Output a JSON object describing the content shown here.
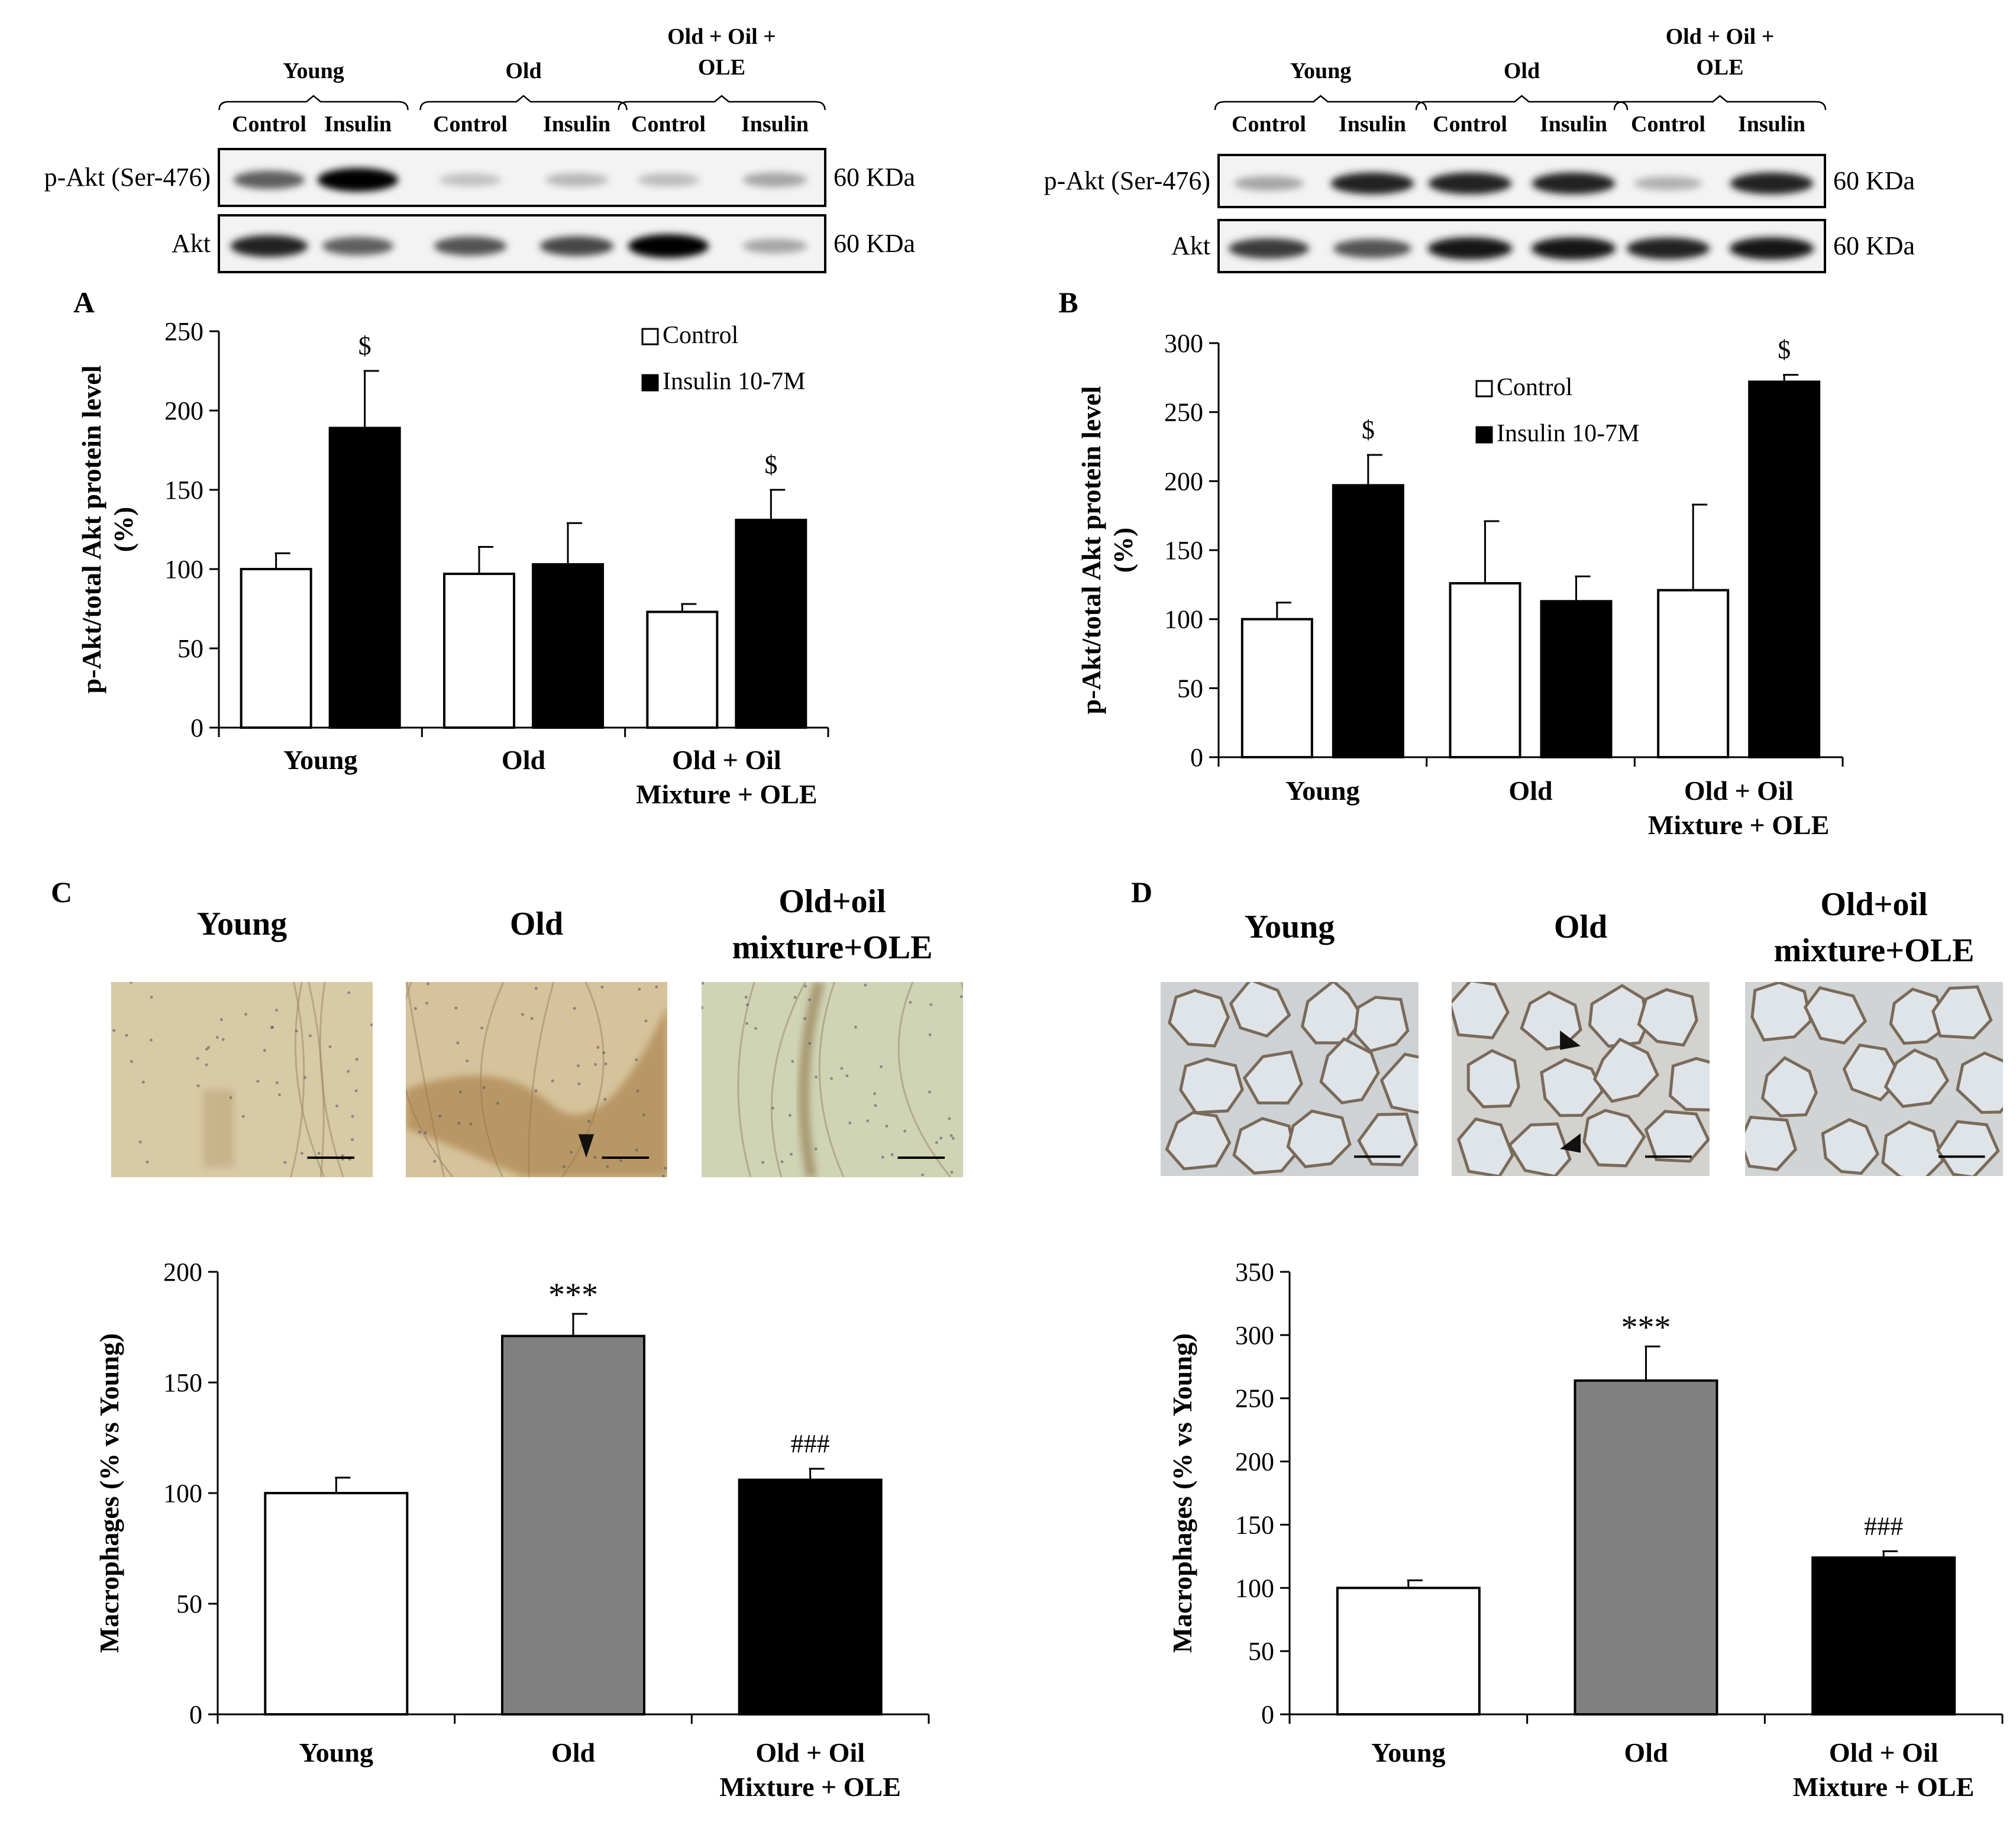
{
  "panels": {
    "A": {
      "letter": "A",
      "blot": {
        "groups": [
          {
            "name": "Young",
            "cond": [
              "Control",
              "Insulin"
            ]
          },
          {
            "name": "Old",
            "cond": [
              "Control",
              "Insulin"
            ]
          },
          {
            "name": "Old + Oil +\nOLE",
            "cond": [
              "Control",
              "Insulin"
            ]
          }
        ],
        "rows": [
          {
            "label": "p-Akt (Ser-476)",
            "kda": "60 KDa",
            "bands": [
              0.6,
              1.0,
              0.18,
              0.22,
              0.2,
              0.3
            ]
          },
          {
            "label": "Akt",
            "kda": "60 KDa",
            "bands": [
              0.85,
              0.6,
              0.65,
              0.7,
              1.0,
              0.3
            ]
          }
        ]
      }
    },
    "B": {
      "letter": "B",
      "blot": {
        "groups": [
          {
            "name": "Young",
            "cond": [
              "Control",
              "Insulin"
            ]
          },
          {
            "name": "Old",
            "cond": [
              "Control",
              "Insulin"
            ]
          },
          {
            "name": "Old + Oil +\nOLE",
            "cond": [
              "Control",
              "Insulin"
            ]
          }
        ],
        "rows": [
          {
            "label": "p-Akt (Ser-476)",
            "kda": "60 KDa",
            "bands": [
              0.3,
              0.85,
              0.85,
              0.85,
              0.25,
              0.85
            ]
          },
          {
            "label": "Akt",
            "kda": "60 KDa",
            "bands": [
              0.75,
              0.65,
              0.9,
              0.9,
              0.85,
              0.9
            ]
          }
        ]
      }
    },
    "C": {
      "letter": "C",
      "images": [
        {
          "title": "Young",
          "tone": "#d9caa6",
          "style": "muscle-young"
        },
        {
          "title": "Old",
          "tone": "#d6c39b",
          "style": "muscle-old"
        },
        {
          "title": "Old+oil\nmixture+OLE",
          "tone": "#cfd4b4",
          "style": "muscle-ole"
        }
      ]
    },
    "D": {
      "letter": "D",
      "images": [
        {
          "title": "Young",
          "tone": "#cfd2d4",
          "style": "adipo"
        },
        {
          "title": "Old",
          "tone": "#d2d2cf",
          "style": "adipo-old"
        },
        {
          "title": "Old+oil\nmixture+OLE",
          "tone": "#d0d4d4",
          "style": "adipo"
        }
      ]
    }
  },
  "chart_data": [
    {
      "id": "A",
      "type": "bar",
      "categories": [
        "Young",
        "Old",
        "Old + Oil\nMixture + OLE"
      ],
      "ylabel": "p-Akt/total Akt protein level\n(%)",
      "ylim": [
        0,
        250
      ],
      "yticks": [
        0,
        50,
        100,
        150,
        200,
        250
      ],
      "series": [
        {
          "name": "Control",
          "color": "#ffffff",
          "values": [
            100,
            97,
            73
          ],
          "errors": [
            10,
            17,
            5
          ],
          "annotations": [
            "",
            "",
            ""
          ]
        },
        {
          "name": "Insulin 10-7M",
          "color": "#000000",
          "values": [
            189,
            103,
            131
          ],
          "errors": [
            36,
            26,
            19
          ],
          "annotations": [
            "$",
            "",
            "$"
          ]
        }
      ],
      "legend": "top-right"
    },
    {
      "id": "B",
      "type": "bar",
      "categories": [
        "Young",
        "Old",
        "Old + Oil\nMixture + OLE"
      ],
      "ylabel": "p-Akt/total Akt protein level\n(%)",
      "ylim": [
        0,
        300
      ],
      "yticks": [
        0,
        50,
        100,
        150,
        200,
        250,
        300
      ],
      "series": [
        {
          "name": "Control",
          "color": "#ffffff",
          "values": [
            100,
            126,
            121
          ],
          "errors": [
            12,
            45,
            62
          ],
          "annotations": [
            "",
            "",
            ""
          ]
        },
        {
          "name": "Insulin 10-7M",
          "color": "#000000",
          "values": [
            197,
            113,
            272
          ],
          "errors": [
            22,
            18,
            5
          ],
          "annotations": [
            "$",
            "",
            "$"
          ]
        }
      ],
      "legend": "top-center"
    },
    {
      "id": "C",
      "type": "bar",
      "categories": [
        "Young",
        "Old",
        "Old + Oil\nMixture + OLE"
      ],
      "ylabel": "Macrophages (% vs Young)",
      "ylim": [
        0,
        200
      ],
      "yticks": [
        0,
        50,
        100,
        150,
        200
      ],
      "series": [
        {
          "name": "Macrophages",
          "colors": [
            "#ffffff",
            "#808080",
            "#000000"
          ],
          "values": [
            100,
            171,
            106
          ],
          "errors": [
            7,
            10,
            5
          ],
          "annotations": [
            "",
            "***",
            "###"
          ]
        }
      ]
    },
    {
      "id": "D",
      "type": "bar",
      "categories": [
        "Young",
        "Old",
        "Old + Oil\nMixture + OLE"
      ],
      "ylabel": "Macrophages (% vs Young)",
      "ylim": [
        0,
        350
      ],
      "yticks": [
        0,
        50,
        100,
        150,
        200,
        250,
        300,
        350
      ],
      "series": [
        {
          "name": "Macrophages",
          "colors": [
            "#ffffff",
            "#808080",
            "#000000"
          ],
          "values": [
            100,
            264,
            124
          ],
          "errors": [
            6,
            27,
            5
          ],
          "annotations": [
            "",
            "***",
            "###"
          ]
        }
      ]
    }
  ]
}
